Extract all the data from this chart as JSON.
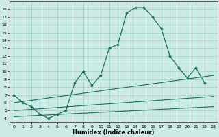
{
  "xlabel": "Humidex (Indice chaleur)",
  "background_color": "#cce9e4",
  "grid_color": "#99cdc7",
  "line_color": "#1a6b5e",
  "xlim": [
    -0.5,
    23.5
  ],
  "ylim": [
    3.5,
    19.0
  ],
  "xticks": [
    0,
    1,
    2,
    3,
    4,
    5,
    6,
    7,
    8,
    9,
    10,
    11,
    12,
    13,
    14,
    15,
    16,
    17,
    18,
    19,
    20,
    21,
    22,
    23
  ],
  "yticks": [
    4,
    5,
    6,
    7,
    8,
    9,
    10,
    11,
    12,
    13,
    14,
    15,
    16,
    17,
    18
  ],
  "main_x": [
    0,
    1,
    2,
    3,
    4,
    5,
    6,
    7,
    8,
    9,
    10,
    11,
    12,
    13,
    14,
    15,
    16,
    17,
    18,
    19,
    20,
    21,
    22
  ],
  "main_y": [
    7.0,
    6.0,
    5.5,
    4.5,
    4.0,
    4.5,
    5.0,
    8.5,
    10.0,
    8.2,
    9.5,
    13.0,
    13.5,
    17.5,
    18.2,
    18.2,
    17.0,
    15.5,
    12.0,
    10.5,
    9.2,
    10.5,
    8.5
  ],
  "line2_x": [
    0,
    23
  ],
  "line2_y": [
    6.0,
    9.5
  ],
  "line3_x": [
    0,
    23
  ],
  "line3_y": [
    5.0,
    6.8
  ],
  "line4_x": [
    0,
    23
  ],
  "line4_y": [
    4.2,
    5.5
  ]
}
